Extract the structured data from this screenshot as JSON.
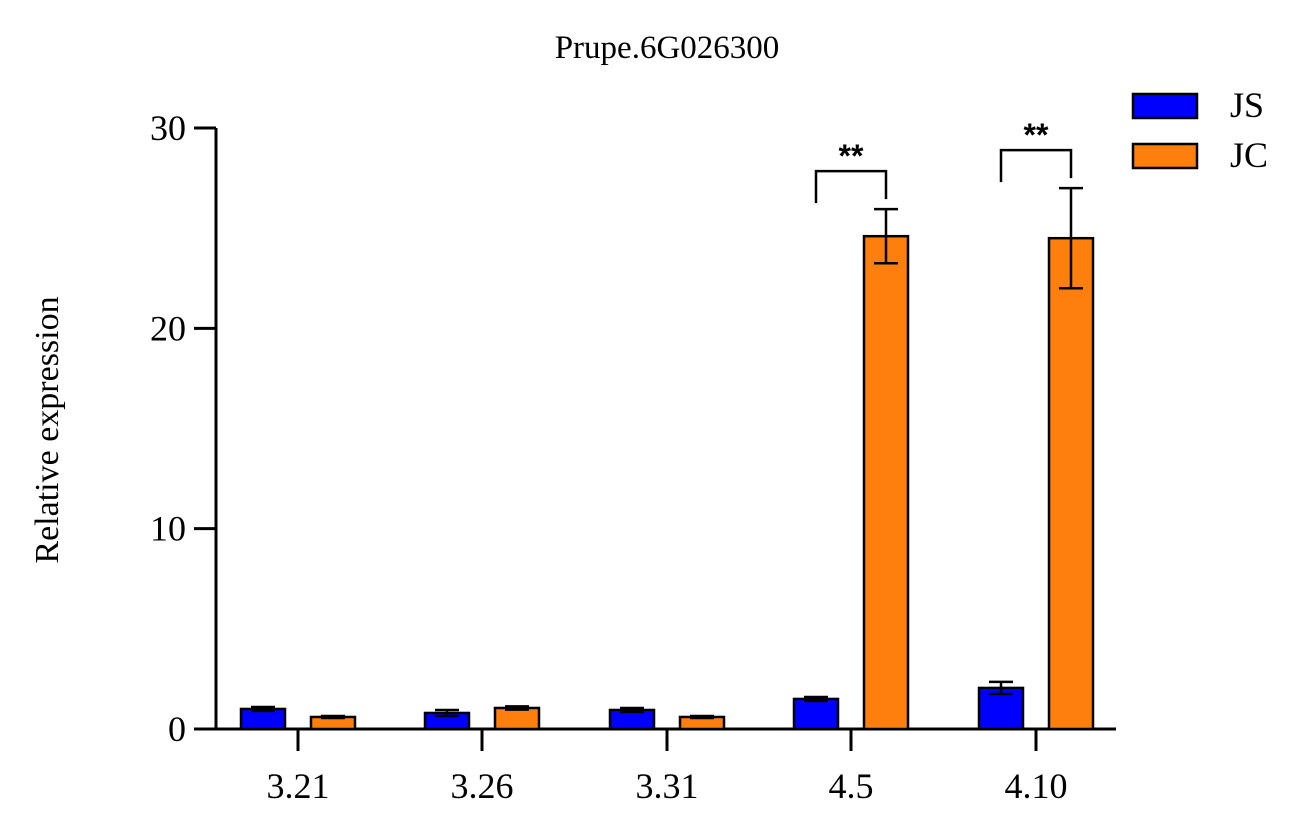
{
  "chart_data": {
    "type": "bar",
    "title": "Prupe.6G026300",
    "xlabel": "",
    "ylabel": "Relative expression",
    "ylim": [
      0,
      30
    ],
    "yticks": [
      "0",
      "10",
      "20",
      "30"
    ],
    "categories": [
      "3.21",
      "3.26",
      "3.31",
      "4.5",
      "4.10"
    ],
    "series": [
      {
        "name": "JS",
        "color": "#0000ff",
        "values": [
          1.0,
          0.8,
          0.95,
          1.5,
          2.05
        ],
        "errors": [
          0.1,
          0.15,
          0.1,
          0.1,
          0.3
        ]
      },
      {
        "name": "JC",
        "color": "#ff7f0e",
        "values": [
          0.6,
          1.05,
          0.6,
          24.6,
          24.5
        ],
        "errors": [
          0.05,
          0.08,
          0.05,
          1.35,
          2.5
        ]
      }
    ],
    "legend_position": "top-right",
    "grid": false,
    "significance": [
      {
        "category": "4.5",
        "label": "**"
      },
      {
        "category": "4.10",
        "label": "**"
      }
    ]
  }
}
